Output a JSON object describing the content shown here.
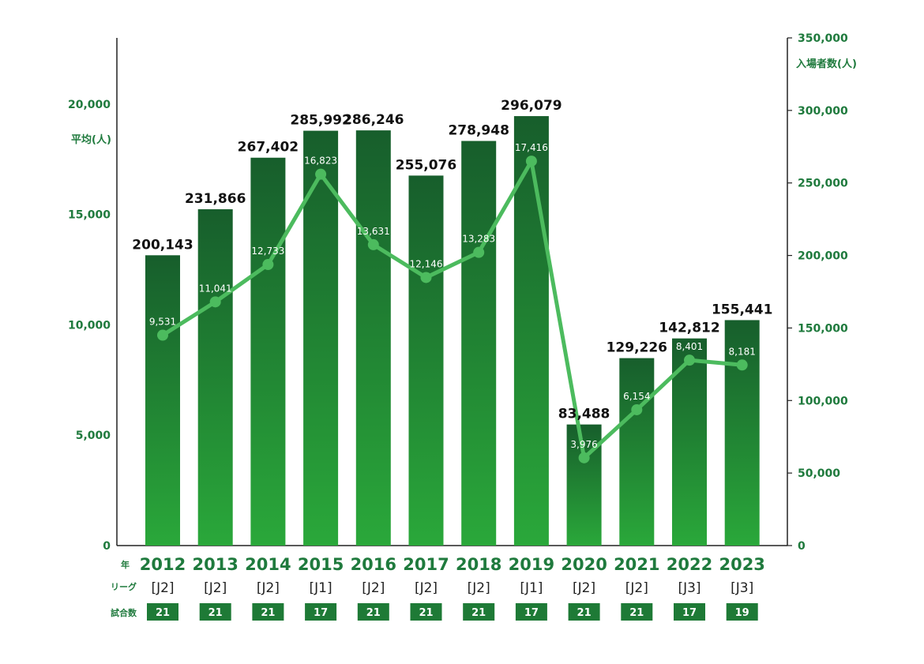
{
  "chart_data": {
    "type": "bar",
    "categories": [
      "2012",
      "2013",
      "2014",
      "2015",
      "2016",
      "2017",
      "2018",
      "2019",
      "2020",
      "2021",
      "2022",
      "2023"
    ],
    "series": [
      {
        "values": [
          200143,
          231866,
          267402,
          285992,
          286246,
          255076,
          278948,
          296079,
          83488,
          129226,
          142812,
          155441
        ]
      },
      {
        "values": [
          9531,
          11041,
          12733,
          16823,
          13631,
          12146,
          13283,
          17416,
          3976,
          6154,
          8401,
          8181
        ]
      }
    ],
    "bar_labels": [
      "200,143",
      "231,866",
      "267,402",
      "285,992",
      "286,246",
      "255,076",
      "278,948",
      "296,079",
      "83,488",
      "129,226",
      "142,812",
      "155,441"
    ],
    "avg_labels": [
      "9,531",
      "11,041",
      "12,733",
      "16,823",
      "13,631",
      "12,146",
      "13,283",
      "17,416",
      "3,976",
      "6,154",
      "8,401",
      "8,181"
    ],
    "leagues": [
      "[J2]",
      "[J2]",
      "[J2]",
      "[J1]",
      "[J2]",
      "[J2]",
      "[J2]",
      "[J1]",
      "[J2]",
      "[J2]",
      "[J3]",
      "[J3]"
    ],
    "games": [
      "21",
      "21",
      "21",
      "17",
      "21",
      "21",
      "21",
      "17",
      "21",
      "21",
      "17",
      "19"
    ],
    "left_axis": {
      "label": "平均(人)",
      "ticks": [
        "0",
        "5,000",
        "10,000",
        "15,000",
        "20,000"
      ],
      "ylim": [
        0,
        23000
      ]
    },
    "right_axis": {
      "label": "入場者数(人)",
      "ticks": [
        "0",
        "50,000",
        "100,000",
        "150,000",
        "200,000",
        "250,000",
        "300,000",
        "350,000"
      ],
      "ylim": [
        0,
        350000
      ]
    },
    "row_titles": {
      "year": "年",
      "league": "リーグ",
      "games": "試合数"
    },
    "colors": {
      "bar_top": "#175e2c",
      "bar_bottom": "#2aa83a",
      "line": "#4cbb5e",
      "axis_text": "#1f7a3d",
      "games_box": "#1e7a36"
    }
  }
}
